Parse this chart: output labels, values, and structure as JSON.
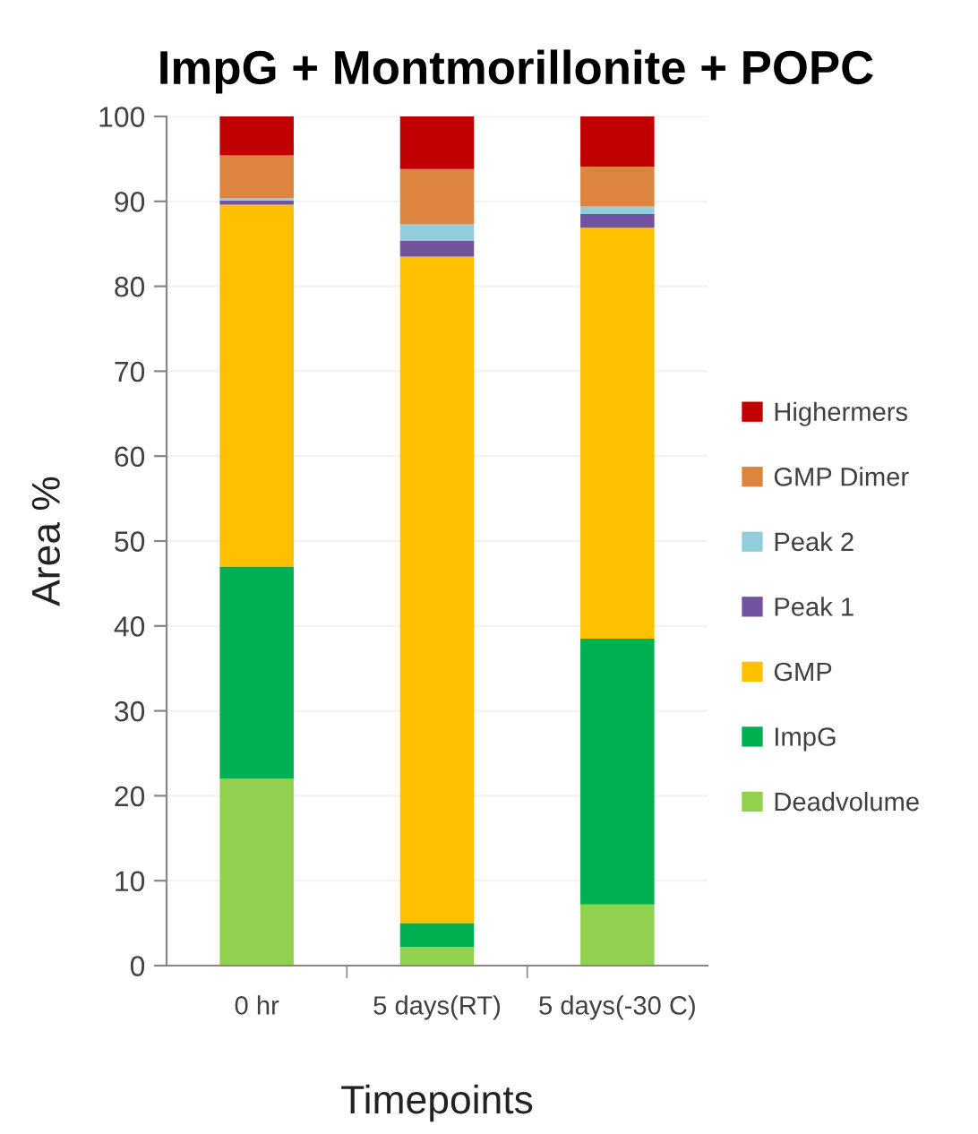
{
  "chart_data": {
    "type": "bar",
    "stacked": true,
    "title": "ImpG + Montmorillonite + POPC",
    "xlabel": "Timepoints",
    "ylabel": "Area %",
    "categories": [
      "0 hr",
      "5 days(RT)",
      "5 days(-30 C)"
    ],
    "series": [
      {
        "name": "Deadvolume",
        "color": "#92d050",
        "values": [
          22.0,
          2.2,
          7.2
        ]
      },
      {
        "name": "ImpG",
        "color": "#00b050",
        "values": [
          25.0,
          2.8,
          31.3
        ]
      },
      {
        "name": "GMP",
        "color": "#ffc000",
        "values": [
          42.6,
          78.5,
          48.4
        ]
      },
      {
        "name": "Peak 1",
        "color": "#7253a0",
        "values": [
          0.5,
          1.9,
          1.6
        ]
      },
      {
        "name": "Peak 2",
        "color": "#92cddc",
        "values": [
          0.3,
          1.9,
          0.9
        ]
      },
      {
        "name": "GMP Dimer",
        "color": "#dc8440",
        "values": [
          5.0,
          6.5,
          4.7
        ]
      },
      {
        "name": "Highermers",
        "color": "#c00000",
        "values": [
          4.6,
          6.2,
          5.9
        ]
      }
    ],
    "ylim": [
      0,
      100
    ],
    "yticks": [
      0,
      10,
      20,
      30,
      40,
      50,
      60,
      70,
      80,
      90,
      100
    ],
    "grid": "y",
    "legend": "right"
  }
}
